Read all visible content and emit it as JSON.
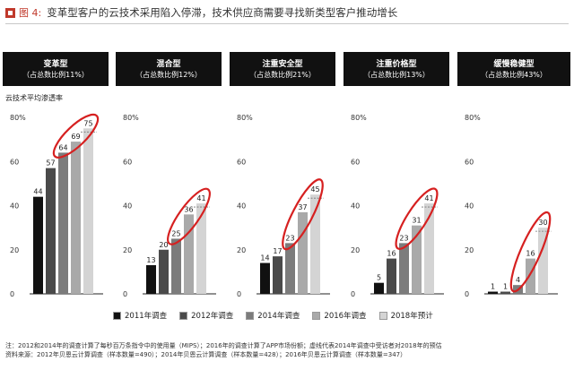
{
  "header": {
    "figure_label": "图 4:",
    "title": "变革型客户的云技术采用陷入停滞，技术供应商需要寻找新类型客户推动增长"
  },
  "chart_data": {
    "type": "bar",
    "ylabel": "云技术平均渗透率",
    "y_ticks": [
      "0",
      "20",
      "40",
      "60",
      "80%"
    ],
    "ylim": [
      0,
      80
    ],
    "legend": [
      "2011年调查",
      "2012年调查",
      "2014年调查",
      "2016年调查",
      "2018年预计"
    ],
    "colors": [
      "#111111",
      "#4a4a4a",
      "#7c7c7c",
      "#a9a9a9",
      "#d4d4d4"
    ],
    "highlight_color": "#d62020",
    "panels": [
      {
        "name": "变革型",
        "share": "（占总数比例11%）",
        "values": [
          44,
          57,
          64,
          69,
          75
        ],
        "labels": [
          "44",
          "57",
          "64",
          "69",
          "75"
        ]
      },
      {
        "name": "混合型",
        "share": "（占总数比例12%）",
        "values": [
          13,
          20,
          25,
          36,
          41
        ],
        "labels": [
          "13",
          "20",
          "25",
          "36",
          "41"
        ]
      },
      {
        "name": "注重安全型",
        "share": "（占总数比例21%）",
        "values": [
          14,
          17,
          23,
          37,
          45
        ],
        "labels": [
          "14",
          "17",
          "23",
          "37",
          "45"
        ]
      },
      {
        "name": "注重价格型",
        "share": "（占总数比例13%）",
        "values": [
          5,
          16,
          23,
          31,
          41
        ],
        "labels": [
          "5",
          "16",
          "23",
          "31",
          "41"
        ]
      },
      {
        "name": "缓慢稳健型",
        "share": "（占总数比例43%）",
        "values": [
          1,
          1,
          4,
          16,
          30
        ],
        "labels": [
          "1",
          "1",
          "4",
          "16",
          "30"
        ]
      }
    ]
  },
  "notes": {
    "line1": "注：2012和2014年的调查计算了每秒百万条指令中的使用量（MIPS）；2016年的调查计算了APP市场份额；虚线代表2014年调查中受访者对2018年的预估",
    "line2": "资料来源：2012年贝恩云计算调查（样本数量=490）；2014年贝恩云计算调查（样本数量=428）；2016年贝恩云计算调查（样本数量=347）"
  }
}
